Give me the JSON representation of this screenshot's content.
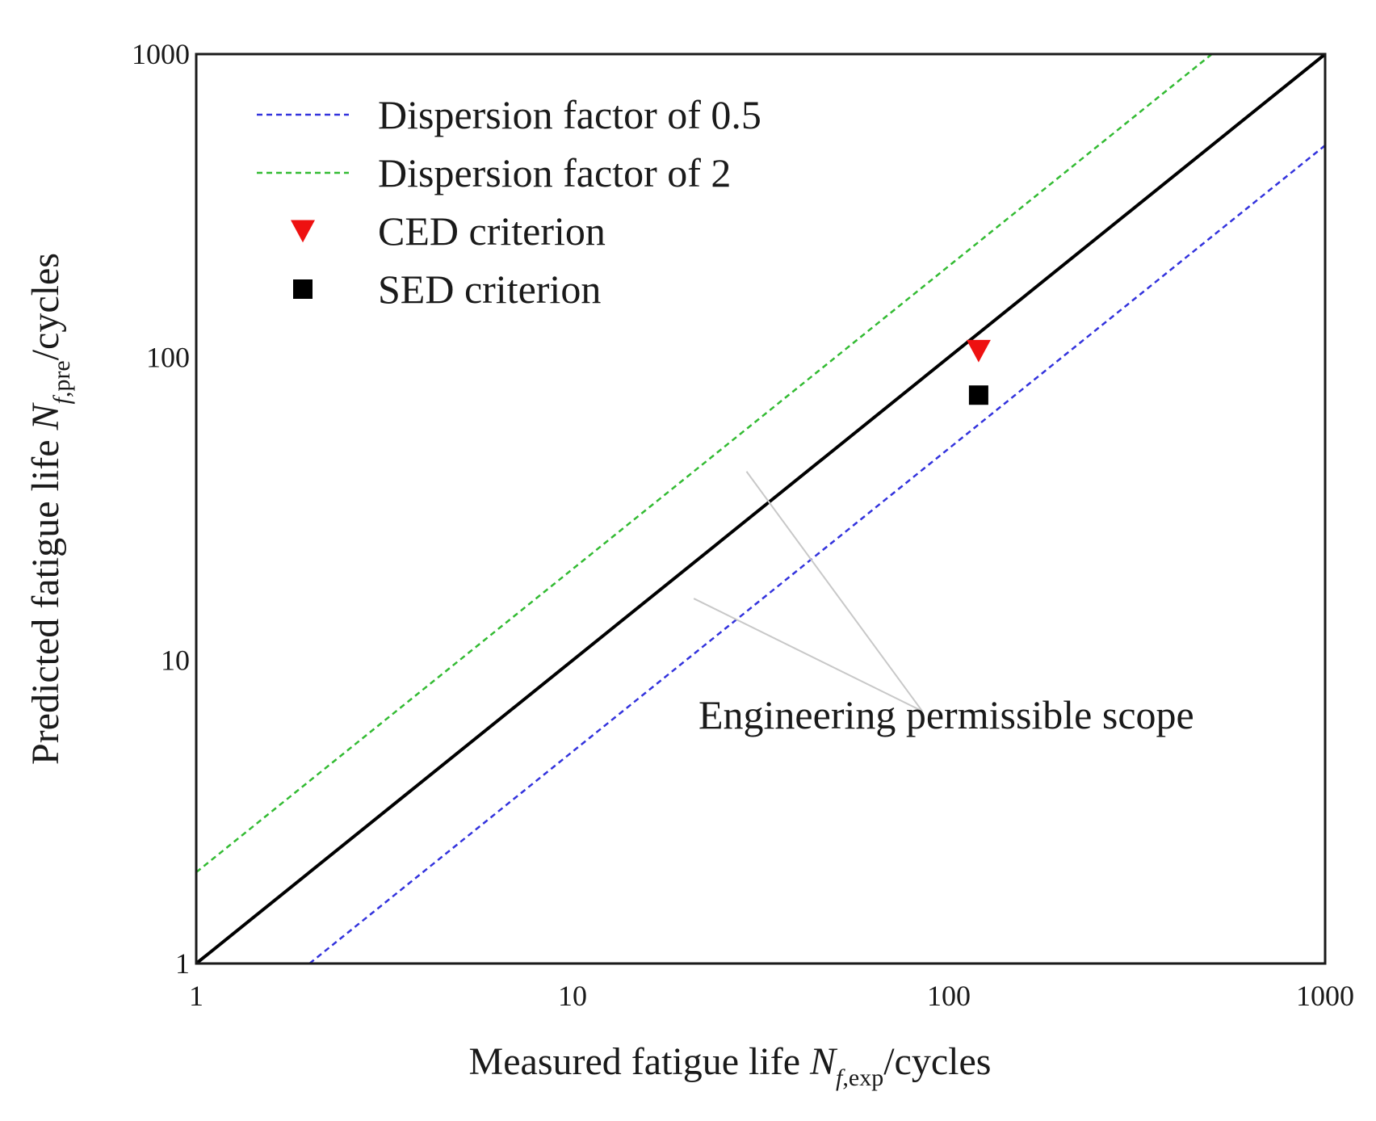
{
  "chart_data": {
    "type": "scatter",
    "title": "",
    "x_axis": {
      "label": {
        "prefix": "Measured fatigue life ",
        "symbol": "N",
        "subscript": "f,exp",
        "suffix": "/cycles"
      },
      "scale": "log",
      "range": [
        1,
        1000
      ],
      "ticks": [
        1,
        10,
        100,
        1000
      ],
      "tick_labels": [
        "1",
        "10",
        "100",
        "1000"
      ]
    },
    "y_axis": {
      "label": {
        "prefix": "Predicted fatigue life ",
        "symbol": "N",
        "subscript": "f,pre",
        "suffix": "/cycles"
      },
      "scale": "log",
      "range": [
        1,
        1000
      ],
      "ticks": [
        1,
        10,
        100,
        1000
      ],
      "tick_labels": [
        "1",
        "10",
        "100",
        "1000"
      ]
    },
    "grid": false,
    "legend_position": "top-left",
    "lines": [
      {
        "name": "",
        "role": "equality",
        "style": "solid",
        "color": "#000000",
        "x": [
          1,
          1000
        ],
        "y": [
          1,
          1000
        ]
      },
      {
        "name": "Dispersion factor of 0.5",
        "style": "dashed",
        "color": "#3333dd",
        "x": [
          2,
          1000
        ],
        "y": [
          1,
          500
        ]
      },
      {
        "name": "Dispersion factor of 2",
        "style": "dashed",
        "color": "#33bb33",
        "x": [
          1,
          500
        ],
        "y": [
          2,
          1000
        ]
      }
    ],
    "series": [
      {
        "name": "CED criterion",
        "marker": "triangle-down",
        "color": "#ee1111",
        "points": [
          {
            "x": 120,
            "y": 105
          }
        ]
      },
      {
        "name": "SED criterion",
        "marker": "square",
        "color": "#000000",
        "points": [
          {
            "x": 120,
            "y": 75
          }
        ]
      }
    ],
    "annotations": [
      {
        "text": "Engineering permissible scope",
        "target_points": [
          {
            "x": 21,
            "y": 16
          },
          {
            "x": 29,
            "y": 42
          }
        ],
        "anchor": {
          "x": 85,
          "y": 6.8
        }
      }
    ]
  }
}
